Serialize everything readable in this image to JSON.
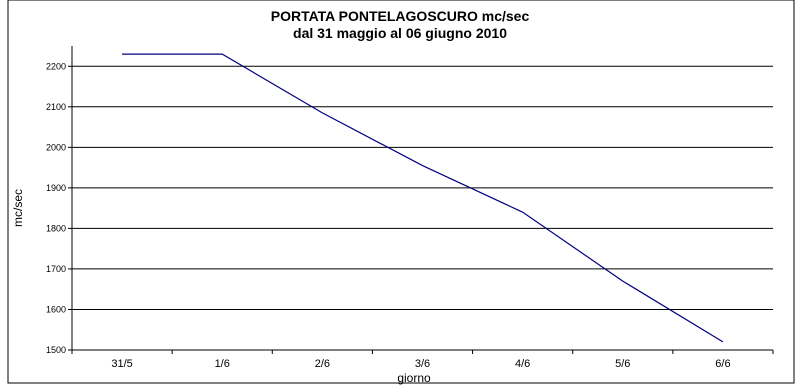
{
  "chart_data": {
    "type": "line",
    "title": "PORTATA PONTELAGOSCURO mc/sec",
    "subtitle": "dal 31 maggio al 06 giugno 2010",
    "xlabel": "giorno",
    "ylabel": "mc/sec",
    "categories": [
      "31/5",
      "1/6",
      "2/6",
      "3/6",
      "4/6",
      "5/6",
      "6/6"
    ],
    "series": [
      {
        "values": [
          2230,
          2230,
          2085,
          1955,
          1840,
          1670,
          1520
        ]
      }
    ],
    "ylim": [
      1500,
      2250
    ],
    "yticks": [
      1500,
      1600,
      1700,
      1800,
      1900,
      2000,
      2100,
      2200
    ],
    "grid": true,
    "legend": "none",
    "line_color": "#000080"
  }
}
